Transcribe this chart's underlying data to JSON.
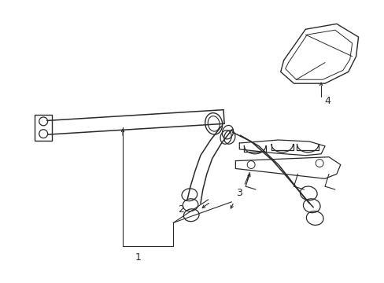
{
  "background_color": "#ffffff",
  "line_color": "#2a2a2a",
  "figsize": [
    4.89,
    3.6
  ],
  "dpi": 100,
  "label_fontsize": 9,
  "lw_main": 1.1,
  "lw_thin": 0.7,
  "lw_callout": 0.8
}
